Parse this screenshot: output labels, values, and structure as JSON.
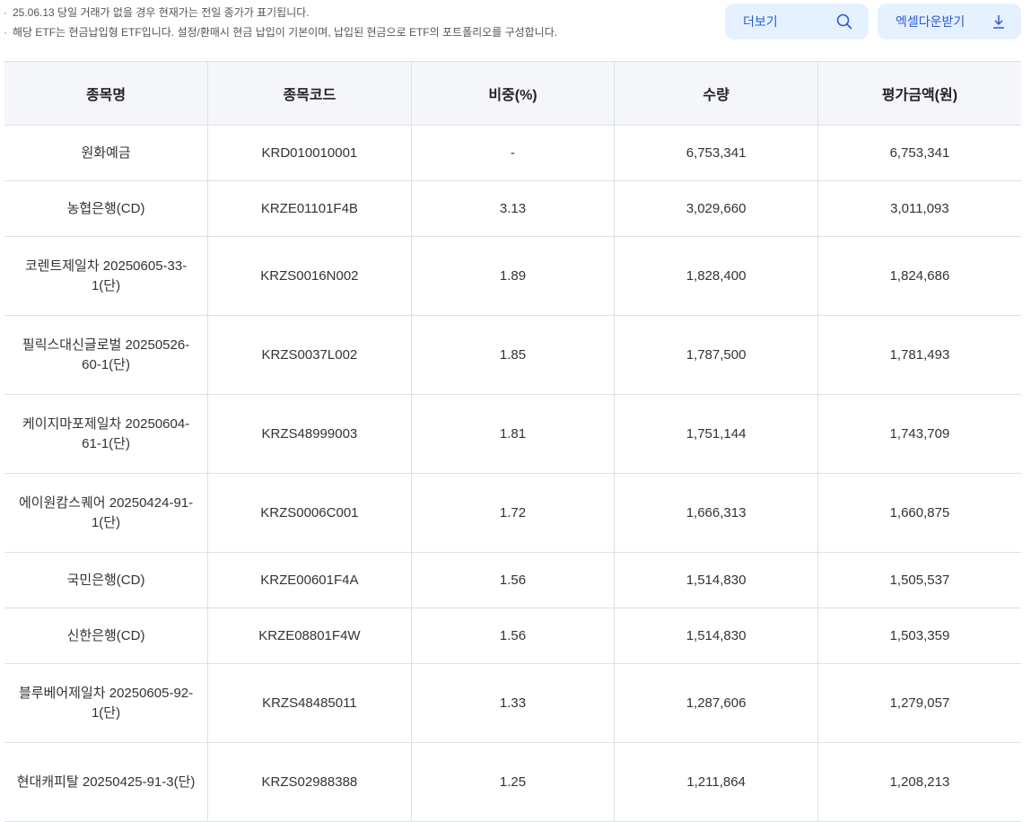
{
  "notes": [
    "25.06.13 당일 거래가 없을 경우 현재가는 전일 종가가 표기됩니다.",
    "해당 ETF는 현금납입형 ETF입니다. 설정/환매시 현금 납입이 기본이며, 납입된 현금으로 ETF의 포트폴리오를 구성합니다."
  ],
  "buttons": {
    "more": "더보기",
    "excel": "엑셀다운받기"
  },
  "icons": {
    "more": "search-icon",
    "excel": "download-icon"
  },
  "accent": "#2a5bd7",
  "table": {
    "headers": [
      "종목명",
      "종목코드",
      "비중(%)",
      "수량",
      "평가금액(원)"
    ],
    "rows": [
      [
        "원화예금",
        "KRD010010001",
        "-",
        "6,753,341",
        "6,753,341"
      ],
      [
        "농협은행(CD)",
        "KRZE01101F4B",
        "3.13",
        "3,029,660",
        "3,011,093"
      ],
      [
        "코렌트제일차 20250605-33-1(단)",
        "KRZS0016N002",
        "1.89",
        "1,828,400",
        "1,824,686"
      ],
      [
        "필릭스대신글로벌 20250526-60-1(단)",
        "KRZS0037L002",
        "1.85",
        "1,787,500",
        "1,781,493"
      ],
      [
        "케이지마포제일차 20250604-61-1(단)",
        "KRZS48999003",
        "1.81",
        "1,751,144",
        "1,743,709"
      ],
      [
        "에이원캄스퀘어 20250424-91-1(단)",
        "KRZS0006C001",
        "1.72",
        "1,666,313",
        "1,660,875"
      ],
      [
        "국민은행(CD)",
        "KRZE00601F4A",
        "1.56",
        "1,514,830",
        "1,505,537"
      ],
      [
        "신한은행(CD)",
        "KRZE08801F4W",
        "1.56",
        "1,514,830",
        "1,503,359"
      ],
      [
        "블루베어제일차 20250605-92-1(단)",
        "KRZS48485011",
        "1.33",
        "1,287,606",
        "1,279,057"
      ],
      [
        "현대캐피탈 20250425-91-3(단)",
        "KRZS02988388",
        "1.25",
        "1,211,864",
        "1,208,213"
      ]
    ]
  }
}
